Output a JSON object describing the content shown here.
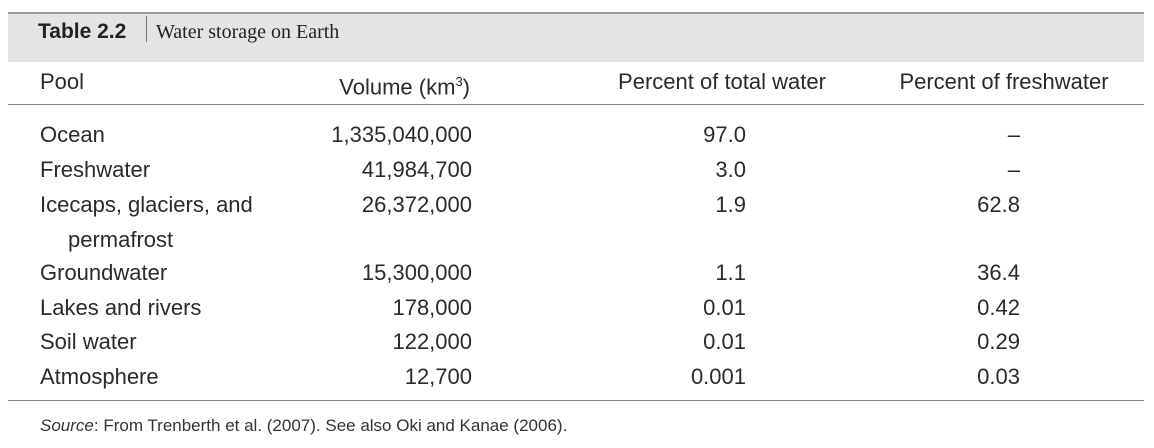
{
  "header": {
    "label": "Table 2.2",
    "title": "Water storage on Earth"
  },
  "table": {
    "columns": [
      "Pool",
      {
        "text": "Volume (km",
        "sup": "3",
        "end": ")"
      },
      "Percent of total water",
      "Percent of freshwater"
    ],
    "rows": [
      [
        "Ocean",
        "1,335,040,000",
        "97.0",
        "–"
      ],
      [
        "Freshwater",
        "41,984,700",
        "3.0",
        "–"
      ],
      [
        "Icecaps, glaciers, and permafrost",
        "26,372,000",
        "1.9",
        "62.8"
      ],
      [
        "Groundwater",
        "15,300,000",
        "1.1",
        "36.4"
      ],
      [
        "Lakes and rivers",
        "178,000",
        "0.01",
        "0.42"
      ],
      [
        "Soil water",
        "122,000",
        "0.01",
        "0.29"
      ],
      [
        "Atmosphere",
        "12,700",
        "0.001",
        "0.03"
      ]
    ]
  },
  "source": {
    "label": "Source",
    "text": ": From Trenberth et al. (2007). See also Oki and Kanae (2006)."
  }
}
